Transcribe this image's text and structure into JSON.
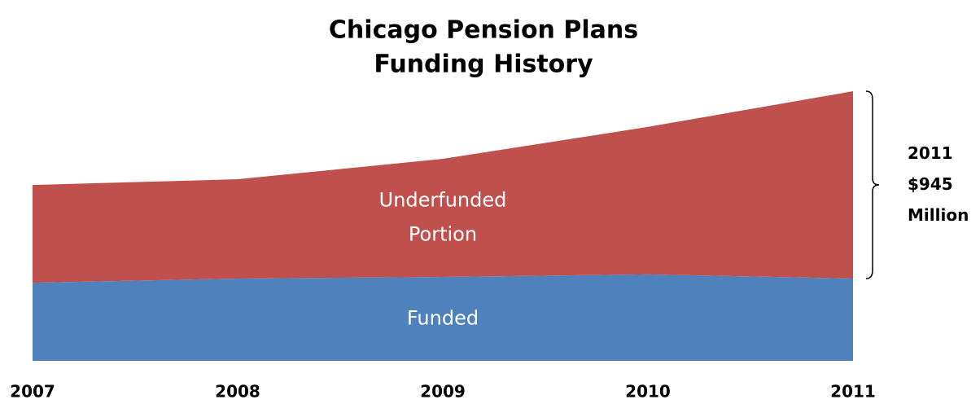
{
  "chart_data": {
    "type": "stacked_area",
    "title": [
      "Chicago Pension Plans",
      "Funding History"
    ],
    "categories": [
      "2007",
      "2008",
      "2009",
      "2010",
      "2011"
    ],
    "series": [
      {
        "name": "Funded",
        "color": "#4f81bd",
        "values": [
          394,
          415,
          423,
          436,
          415
        ]
      },
      {
        "name": "Underfunded Portion",
        "color": "#c0504d",
        "values": [
          493,
          501,
          596,
          744,
          945
        ]
      }
    ],
    "ylim": [
      0,
      1360
    ],
    "annotation": "2011 $945 Million"
  }
}
